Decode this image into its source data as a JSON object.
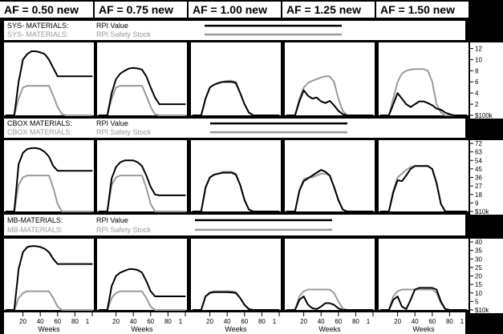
{
  "af_headers": [
    "AF = 0.50 new",
    "AF = 0.75 new",
    "AF = 1.00 new",
    "AF = 1.25 new",
    "AF = 1.50 new"
  ],
  "colors": {
    "value": "#000000",
    "safety": "#9a9a9a",
    "background": "#000000",
    "panel": "#ffffff"
  },
  "x_tick_labels": [
    "20",
    "40",
    "60",
    "80",
    "1"
  ],
  "x_axis_label": "Weeks",
  "chart_data": [
    {
      "type": "line",
      "legend": {
        "name": "SYS- MATERIALS:",
        "series": [
          "RPI Value",
          "RPI Safety Stock"
        ]
      },
      "x": [
        0,
        5,
        10,
        15,
        20,
        25,
        30,
        35,
        40,
        45,
        50,
        55,
        60,
        65,
        70,
        75,
        80,
        85,
        90,
        95,
        100
      ],
      "ylim": [
        0,
        12.5
      ],
      "y_ticks": [
        "12",
        "10",
        "8",
        "6",
        "4",
        "2",
        "$100k"
      ],
      "y_tick_values": [
        12,
        10,
        8,
        6,
        4,
        2,
        0
      ],
      "panels": [
        {
          "af": "AF = 0.50 new",
          "series": [
            {
              "name": "RPI Value",
              "values": [
                0,
                0,
                0,
                6,
                10,
                11,
                11.5,
                11.5,
                11.3,
                11,
                10,
                8.5,
                7,
                7,
                7,
                7,
                7,
                7,
                7,
                7,
                7
              ]
            },
            {
              "name": "RPI Safety Stock",
              "values": [
                0,
                0,
                0,
                3,
                5,
                5.3,
                5.3,
                5.3,
                5.3,
                5.3,
                5.3,
                3.5,
                1.5,
                0.2,
                0,
                0,
                0,
                0,
                0,
                0,
                0
              ]
            }
          ]
        },
        {
          "af": "AF = 0.75 new",
          "series": [
            {
              "name": "RPI Value",
              "values": [
                0,
                0,
                0,
                4,
                6.5,
                7.5,
                8,
                8.4,
                8.5,
                8.4,
                8.2,
                7,
                5,
                3.2,
                2,
                2,
                2,
                2,
                2,
                2,
                2
              ]
            },
            {
              "name": "RPI Safety Stock",
              "values": [
                0,
                0,
                0,
                3,
                5,
                5.3,
                5.3,
                5.3,
                5.3,
                5.3,
                5.3,
                3.5,
                1.5,
                0.2,
                0,
                0,
                0,
                0,
                0,
                0,
                0
              ]
            }
          ]
        },
        {
          "af": "AF = 1.00 new",
          "series": [
            {
              "name": "RPI Value",
              "values": [
                0,
                0,
                0,
                3,
                5,
                5.5,
                5.8,
                6,
                6,
                6,
                5.8,
                4,
                2,
                0.5,
                0,
                0,
                0,
                0,
                0,
                0,
                0
              ]
            },
            {
              "name": "RPI Safety Stock",
              "values": [
                0,
                0,
                0,
                3,
                5,
                5.5,
                5.8,
                6,
                6.2,
                6.2,
                6,
                4,
                2,
                0.5,
                0,
                0,
                0,
                0,
                0,
                0,
                0
              ]
            }
          ]
        },
        {
          "af": "AF = 1.25 new",
          "series": [
            {
              "name": "RPI Value",
              "values": [
                0,
                0,
                0,
                2.5,
                4.5,
                3.5,
                3,
                3.2,
                2.5,
                2.2,
                2.6,
                1.8,
                0.8,
                0.2,
                0,
                0,
                0,
                0,
                0,
                0,
                0
              ]
            },
            {
              "name": "RPI Safety Stock",
              "values": [
                0,
                0,
                0,
                3,
                5,
                5.8,
                6.2,
                6.5,
                6.8,
                7,
                7,
                6,
                3,
                0.8,
                0,
                0,
                0,
                0,
                0,
                0,
                0
              ]
            }
          ]
        },
        {
          "af": "AF = 1.50 new",
          "series": [
            {
              "name": "RPI Value",
              "values": [
                0,
                0,
                0,
                2,
                4,
                3,
                2,
                1.5,
                2,
                2.5,
                2.5,
                2.2,
                1.8,
                1.2,
                1,
                0.5,
                0.2,
                0,
                0,
                0,
                0
              ]
            },
            {
              "name": "RPI Safety Stock",
              "values": [
                0,
                0,
                0,
                3,
                6,
                7.5,
                8,
                8.2,
                8.3,
                8.3,
                8.3,
                8,
                6,
                2,
                0.5,
                0,
                0,
                0,
                0,
                0,
                0
              ]
            }
          ]
        }
      ]
    },
    {
      "type": "line",
      "legend": {
        "name": "CBOX MATERIALS:",
        "series": [
          "RPI Value",
          "RPI Safety Stock"
        ]
      },
      "x": [
        0,
        5,
        10,
        15,
        20,
        25,
        30,
        35,
        40,
        45,
        50,
        55,
        60,
        65,
        70,
        75,
        80,
        85,
        90,
        95,
        100
      ],
      "ylim": [
        0,
        72
      ],
      "y_ticks": [
        "72",
        "63",
        "54",
        "45",
        "36",
        "27",
        "18",
        "9",
        "$10k"
      ],
      "y_tick_values": [
        72,
        63,
        54,
        45,
        36,
        27,
        18,
        9,
        0
      ],
      "panels": [
        {
          "af": "AF = 0.50 new",
          "series": [
            {
              "name": "RPI Value",
              "values": [
                0,
                0,
                0,
                50,
                62,
                66,
                67,
                67,
                66,
                63,
                58,
                48,
                43,
                43,
                43,
                43,
                43,
                43,
                43,
                43,
                43
              ]
            },
            {
              "name": "RPI Safety Stock",
              "values": [
                0,
                0,
                0,
                28,
                36,
                38,
                38,
                38,
                38,
                38,
                38,
                25,
                8,
                0,
                0,
                0,
                0,
                0,
                0,
                0,
                0
              ]
            }
          ]
        },
        {
          "af": "AF = 0.75 new",
          "series": [
            {
              "name": "RPI Value",
              "values": [
                0,
                0,
                0,
                35,
                47,
                52,
                54,
                54,
                54,
                52,
                48,
                38,
                26,
                18,
                17,
                17,
                17,
                17,
                17,
                17,
                17
              ]
            },
            {
              "name": "RPI Safety Stock",
              "values": [
                0,
                0,
                0,
                28,
                36,
                38,
                38,
                38,
                38,
                38,
                38,
                25,
                8,
                0,
                0,
                0,
                0,
                0,
                0,
                0,
                0
              ]
            }
          ]
        },
        {
          "af": "AF = 1.00 new",
          "series": [
            {
              "name": "RPI Value",
              "values": [
                0,
                0,
                0,
                25,
                36,
                39,
                40,
                41,
                41,
                41,
                39,
                28,
                12,
                2,
                0,
                0,
                0,
                0,
                0,
                0,
                0
              ]
            },
            {
              "name": "RPI Safety Stock",
              "values": [
                0,
                0,
                0,
                26,
                36,
                39,
                40,
                42,
                42,
                42,
                40,
                28,
                12,
                2,
                0,
                0,
                0,
                0,
                0,
                0,
                0
              ]
            }
          ]
        },
        {
          "af": "AF = 1.25 new",
          "series": [
            {
              "name": "RPI Value",
              "values": [
                0,
                0,
                0,
                22,
                32,
                35,
                38,
                41,
                44,
                42,
                38,
                26,
                12,
                2,
                0,
                0,
                0,
                0,
                0,
                0,
                0
              ]
            },
            {
              "name": "RPI Safety Stock",
              "values": [
                0,
                0,
                0,
                22,
                34,
                36,
                36,
                38,
                40,
                40,
                38,
                26,
                12,
                2,
                0,
                0,
                0,
                0,
                0,
                0,
                0
              ]
            }
          ]
        },
        {
          "af": "AF = 1.50 new",
          "series": [
            {
              "name": "RPI Value",
              "values": [
                0,
                0,
                0,
                20,
                33,
                32,
                38,
                45,
                48,
                48,
                48,
                48,
                45,
                30,
                8,
                0,
                0,
                0,
                0,
                0,
                0
              ]
            },
            {
              "name": "RPI Safety Stock",
              "values": [
                0,
                0,
                0,
                22,
                36,
                40,
                44,
                47,
                48,
                48,
                48,
                48,
                45,
                30,
                8,
                0,
                0,
                0,
                0,
                0,
                0
              ]
            }
          ]
        }
      ]
    },
    {
      "type": "line",
      "legend": {
        "name": "MB-MATERIALS:",
        "series": [
          "RPI Value",
          "RPI Safety Stock"
        ]
      },
      "x": [
        0,
        5,
        10,
        15,
        20,
        25,
        30,
        35,
        40,
        45,
        50,
        55,
        60,
        65,
        70,
        75,
        80,
        85,
        90,
        95,
        100
      ],
      "ylim": [
        0,
        40
      ],
      "y_ticks": [
        "40",
        "35",
        "30",
        "25",
        "20",
        "15",
        "10",
        "5",
        "$10k"
      ],
      "y_tick_values": [
        40,
        35,
        30,
        25,
        20,
        15,
        10,
        5,
        0
      ],
      "panels": [
        {
          "af": "AF = 0.50 new",
          "series": [
            {
              "name": "RPI Value",
              "values": [
                0,
                0,
                0,
                24,
                34,
                37,
                37.5,
                37.5,
                37,
                36,
                34,
                30,
                27,
                27,
                27,
                27,
                27,
                27,
                27,
                27,
                27
              ]
            },
            {
              "name": "RPI Safety Stock",
              "values": [
                0,
                0,
                0,
                7,
                10,
                11,
                11,
                11,
                11,
                11,
                11,
                7,
                2,
                0,
                0,
                0,
                0,
                0,
                0,
                0,
                0
              ]
            }
          ]
        },
        {
          "af": "AF = 0.75 new",
          "series": [
            {
              "name": "RPI Value",
              "values": [
                0,
                0,
                0,
                14,
                20,
                22,
                23,
                24,
                24,
                23.5,
                22,
                17,
                11,
                8,
                8,
                8,
                8,
                8,
                8,
                8,
                8
              ]
            },
            {
              "name": "RPI Safety Stock",
              "values": [
                0,
                0,
                0,
                7,
                10,
                11,
                11,
                11,
                11,
                11,
                11,
                7,
                2,
                0,
                0,
                0,
                0,
                0,
                0,
                0,
                0
              ]
            }
          ]
        },
        {
          "af": "AF = 1.00 new",
          "series": [
            {
              "name": "RPI Value",
              "values": [
                0,
                0,
                0,
                8,
                10,
                10.5,
                10.5,
                10.5,
                10.5,
                10.3,
                10,
                7,
                3,
                0.5,
                0,
                0,
                0,
                0,
                0,
                0,
                0
              ]
            },
            {
              "name": "RPI Safety Stock",
              "values": [
                0,
                0,
                0,
                8,
                10.5,
                11,
                11,
                11,
                11,
                11,
                10.5,
                7,
                3,
                0.5,
                0,
                0,
                0,
                0,
                0,
                0,
                0
              ]
            }
          ]
        },
        {
          "af": "AF = 1.25 new",
          "series": [
            {
              "name": "RPI Value",
              "values": [
                0,
                0,
                0,
                6,
                8,
                3,
                1,
                0.5,
                2,
                4,
                4,
                3,
                1,
                0,
                0,
                0,
                0,
                0,
                0,
                0,
                0
              ]
            },
            {
              "name": "RPI Safety Stock",
              "values": [
                0,
                0,
                0,
                8,
                11,
                12,
                12,
                12,
                12,
                12,
                12,
                10,
                5,
                1,
                0,
                0,
                0,
                0,
                0,
                0,
                0
              ]
            }
          ]
        },
        {
          "af": "AF = 1.50 new",
          "series": [
            {
              "name": "RPI Value",
              "values": [
                0,
                0,
                0,
                6,
                8,
                2,
                0.5,
                6,
                12,
                13,
                13,
                13,
                13,
                12,
                5,
                0.5,
                0,
                0,
                0,
                0,
                0
              ]
            },
            {
              "name": "RPI Safety Stock",
              "values": [
                0,
                0,
                0,
                8,
                11,
                12,
                12,
                12,
                12,
                12,
                12,
                12,
                12,
                10,
                4,
                0.5,
                0,
                0,
                0,
                0,
                0
              ]
            }
          ]
        }
      ]
    }
  ]
}
